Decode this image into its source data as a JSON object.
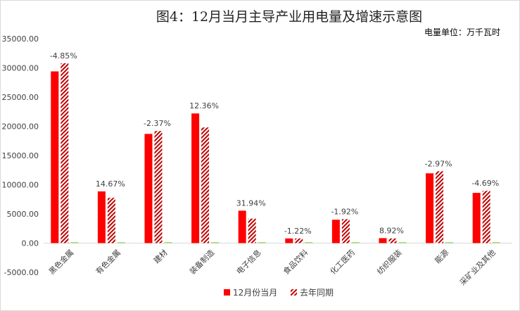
{
  "chart_data": {
    "type": "bar",
    "title": "图4：12月当月主导产业用电量及增速示意图",
    "unit_note": "电量单位：万千瓦时",
    "categories": [
      "黑色金属",
      "有色金属",
      "建材",
      "装备制造",
      "电子信息",
      "食品饮料",
      "化工医药",
      "纺织服装",
      "能源",
      "采矿业及其他"
    ],
    "series": [
      {
        "name": "12月份当月",
        "color": "#ff0000",
        "pattern": "solid",
        "values": [
          29400,
          8850,
          18700,
          22200,
          5550,
          800,
          4000,
          850,
          11950,
          8600
        ]
      },
      {
        "name": "去年同期",
        "color": "#c00000",
        "pattern": "diagonal-hatch",
        "values": [
          30800,
          7750,
          19200,
          19800,
          4200,
          800,
          4100,
          800,
          12300,
          8950
        ]
      },
      {
        "name": "",
        "color": "#92d050",
        "pattern": "solid",
        "values": [
          0,
          0,
          0,
          0,
          0,
          0,
          0,
          0,
          0,
          0
        ]
      }
    ],
    "growth_labels": [
      "-4.85%",
      "14.67%",
      "-2.37%",
      "12.36%",
      "31.94%",
      "-1.22%",
      "-1.92%",
      "8.92%",
      "-2.97%",
      "-4.69%"
    ],
    "yticks": [
      "-5000.00",
      "0.00",
      "5000.00",
      "10000.00",
      "15000.00",
      "20000.00",
      "25000.00",
      "30000.00",
      "35000.00"
    ],
    "ylim": [
      -5000,
      35000
    ],
    "grid": false,
    "legend_position": "bottom",
    "legend": [
      {
        "label": "12月份当月",
        "color": "#ff0000",
        "pattern": "solid"
      },
      {
        "label": "去年同期",
        "color": "#c00000",
        "pattern": "diagonal-hatch"
      }
    ]
  }
}
